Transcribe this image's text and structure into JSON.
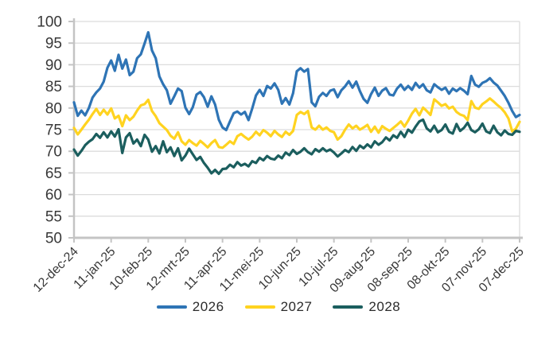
{
  "chart_data": {
    "type": "line",
    "title": "",
    "grid": true,
    "legend_position": "bottom",
    "y_axis": {
      "min": 50,
      "max": 100,
      "step": 5,
      "ticks": [
        100,
        95,
        90,
        85,
        80,
        75,
        70,
        65,
        60,
        55,
        50
      ]
    },
    "x_axis": {
      "tick_interval_days": 30,
      "total_days": 360,
      "tick_labels": [
        "12-dec-24",
        "11-jan-25",
        "10-feb-25",
        "12-mrt-25",
        "11-apr-25",
        "11-mei-25",
        "10-jun-25",
        "10-jul-25",
        "09-aug-25",
        "08-sep-25",
        "08-okt-25",
        "07-nov-25",
        "07-dec-25"
      ]
    },
    "x_step_days": 3,
    "series": [
      {
        "name": "2026",
        "color": "#2E74B5",
        "values": [
          81.3,
          78.2,
          79.4,
          78.3,
          80.0,
          82.4,
          83.6,
          84.5,
          86.1,
          89.3,
          91.0,
          88.6,
          92.3,
          89.1,
          91.2,
          87.6,
          88.4,
          91.5,
          92.4,
          94.9,
          97.5,
          93.3,
          91.5,
          87.3,
          85.5,
          84.1,
          81.0,
          82.7,
          84.5,
          83.9,
          80.1,
          78.6,
          80.2,
          83.1,
          83.7,
          82.5,
          80.3,
          82.7,
          80.8,
          77.3,
          75.5,
          74.9,
          76.9,
          78.8,
          79.2,
          78.5,
          79.1,
          77.2,
          79.9,
          82.9,
          84.2,
          82.8,
          85.1,
          84.5,
          85.7,
          84.2,
          81.0,
          82.3,
          80.8,
          83.4,
          88.5,
          89.2,
          88.4,
          89.0,
          81.3,
          80.4,
          82.6,
          83.5,
          82.8,
          84.0,
          84.3,
          82.5,
          84.1,
          85.0,
          86.2,
          84.7,
          86.1,
          83.9,
          82.1,
          81.2,
          83.2,
          84.7,
          82.8,
          84.0,
          84.6,
          83.1,
          82.9,
          84.5,
          85.4,
          84.2,
          85.1,
          84.2,
          85.8,
          84.7,
          85.5,
          84.1,
          83.6,
          85.5,
          84.8,
          84.2,
          84.7,
          83.3,
          84.5,
          83.9,
          84.6,
          84.0,
          83.2,
          87.4,
          85.4,
          84.9,
          85.8,
          86.2,
          86.9,
          85.9,
          85.2,
          84.0,
          82.8,
          81.2,
          79.3,
          77.9,
          78.4
        ]
      },
      {
        "name": "2027",
        "color": "#FFD320",
        "values": [
          75.4,
          73.9,
          75.0,
          76.2,
          77.3,
          78.6,
          79.8,
          78.4,
          79.6,
          78.5,
          79.9,
          77.6,
          78.2,
          75.8,
          78.3,
          77.2,
          78.0,
          79.4,
          80.6,
          80.9,
          81.9,
          79.3,
          78.1,
          76.5,
          75.7,
          74.9,
          73.6,
          72.9,
          74.4,
          72.3,
          71.5,
          72.6,
          71.9,
          71.3,
          72.4,
          71.7,
          70.9,
          71.9,
          72.6,
          71.0,
          70.8,
          71.5,
          72.3,
          71.7,
          73.5,
          74.0,
          73.3,
          72.7,
          73.4,
          74.5,
          73.7,
          74.9,
          74.3,
          73.5,
          74.7,
          73.9,
          73.3,
          74.5,
          73.8,
          74.7,
          78.4,
          79.1,
          78.6,
          79.3,
          75.5,
          75.0,
          75.9,
          75.0,
          75.5,
          74.7,
          74.4,
          72.7,
          73.5,
          75.0,
          76.2,
          75.3,
          75.9,
          75.0,
          75.5,
          76.1,
          74.5,
          75.7,
          74.3,
          75.8,
          75.2,
          74.7,
          75.4,
          76.1,
          76.9,
          75.7,
          77.1,
          78.7,
          79.8,
          78.3,
          80.1,
          79.3,
          78.4,
          82.0,
          81.3,
          80.5,
          80.9,
          79.9,
          80.3,
          79.1,
          78.5,
          78.2,
          77.2,
          81.6,
          80.1,
          79.8,
          80.9,
          81.5,
          82.2,
          81.5,
          80.7,
          80.0,
          79.0,
          77.6,
          74.6,
          75.2,
          76.8
        ]
      },
      {
        "name": "2028",
        "color": "#1B5E5E",
        "values": [
          70.4,
          69.0,
          70.1,
          71.4,
          72.2,
          72.8,
          74.0,
          73.1,
          74.4,
          73.2,
          74.6,
          73.4,
          75.1,
          69.6,
          73.2,
          74.2,
          71.8,
          72.7,
          71.2,
          73.8,
          72.7,
          69.9,
          71.2,
          69.5,
          72.3,
          69.8,
          70.9,
          68.9,
          70.7,
          67.9,
          69.0,
          70.6,
          69.3,
          68.0,
          68.7,
          67.3,
          66.2,
          64.9,
          65.7,
          64.8,
          65.9,
          66.0,
          66.9,
          66.3,
          67.5,
          66.7,
          67.1,
          66.5,
          67.7,
          67.3,
          68.5,
          67.9,
          68.9,
          68.3,
          68.1,
          69.0,
          68.4,
          69.7,
          69.1,
          70.3,
          69.4,
          69.9,
          70.7,
          69.8,
          69.3,
          70.5,
          69.9,
          70.7,
          70.0,
          70.4,
          69.7,
          68.8,
          69.5,
          70.3,
          69.8,
          71.0,
          70.1,
          71.3,
          70.7,
          71.6,
          70.9,
          72.3,
          71.5,
          72.1,
          73.2,
          72.5,
          73.7,
          73.1,
          74.5,
          73.3,
          75.0,
          74.3,
          75.7,
          76.9,
          77.3,
          75.3,
          74.6,
          75.9,
          74.4,
          74.9,
          76.2,
          74.5,
          74.1,
          76.3,
          74.7,
          75.4,
          76.6,
          74.9,
          74.4,
          75.1,
          76.4,
          74.6,
          74.2,
          75.9,
          74.4,
          73.7,
          74.8,
          74.0,
          73.8,
          74.7,
          74.5
        ]
      }
    ],
    "colors": {
      "grid": "#DCDCDC",
      "axis": "#C4C4C4",
      "tick": "#C4C4C4",
      "label_text": "#383838"
    }
  }
}
